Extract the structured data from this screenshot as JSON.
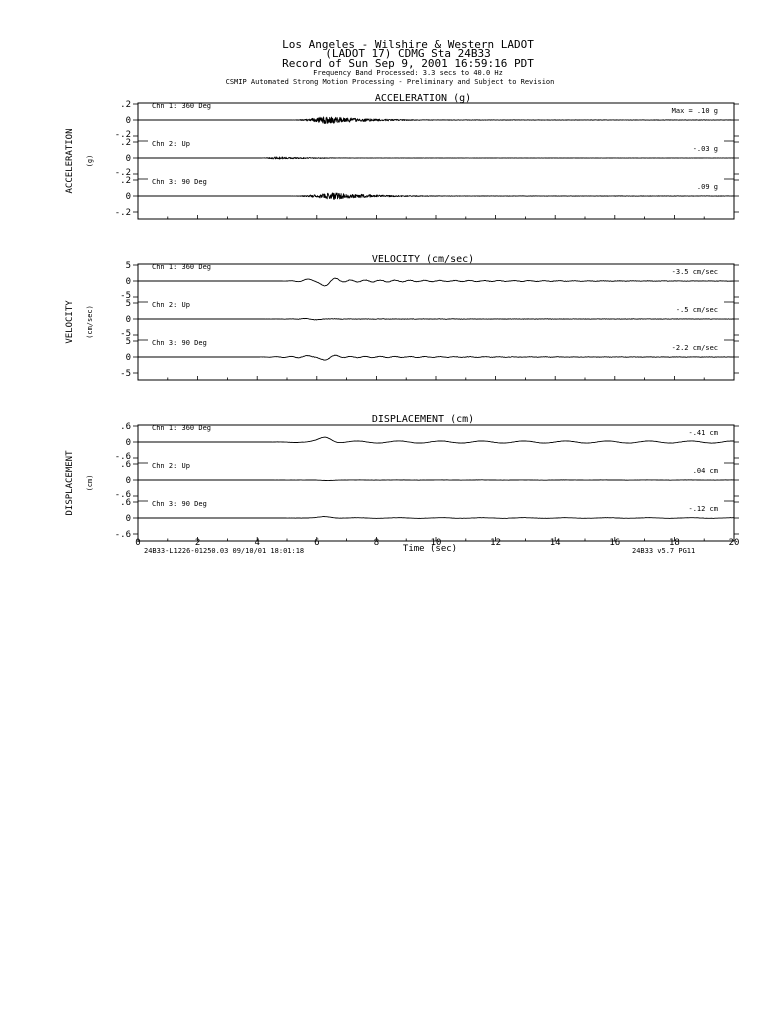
{
  "header": {
    "line1": "Los Angeles - Wilshire & Western LADOT",
    "line2": "(LADOT 17)     CDMG Sta 24B33",
    "line3": "Record of Sun Sep  9, 2001 16:59:16 PDT",
    "line4": "Frequency Band Processed: 3.3 secs to 40.0 Hz",
    "line5": "CSMIP Automated Strong Motion Processing - Preliminary and Subject to Revision"
  },
  "footer": {
    "left": "24B33-L1226-01250.03  09/10/01 18:01:18",
    "right": "24B33  v5.7  PG11"
  },
  "chart_data": {
    "type": "line",
    "xlabel": "Time (sec)",
    "xlim": [
      0,
      20
    ],
    "xticks": [
      "0",
      "2",
      "4",
      "6",
      "8",
      "10",
      "12",
      "14",
      "16",
      "18",
      "20"
    ],
    "panels": [
      {
        "title": "ACCELERATION (g)",
        "ylabel": "ACCELERATION",
        "yunit": "(g)",
        "channels": [
          {
            "name": "Chn 1: 360 Deg",
            "ytick_labels": [
              ".2",
              "0",
              "-.2"
            ],
            "max_label": "Max =   .10   g",
            "max": 0.1,
            "t_start": 5.0,
            "t_peak": 6.3,
            "shape": "accel"
          },
          {
            "name": "Chn 2: Up",
            "ytick_labels": [
              ".2",
              "0",
              "-.2"
            ],
            "max_label": "-.03   g",
            "max": -0.03,
            "t_start": 4.0,
            "t_peak": 4.6,
            "shape": "accel"
          },
          {
            "name": "Chn 3: 90 Deg",
            "ytick_labels": [
              ".2",
              "0",
              "-.2"
            ],
            "max_label": ".09   g",
            "max": 0.09,
            "t_start": 5.0,
            "t_peak": 6.5,
            "shape": "accel"
          }
        ]
      },
      {
        "title": "VELOCITY (cm/sec)",
        "ylabel": "VELOCITY",
        "yunit": "(cm/sec)",
        "channels": [
          {
            "name": "Chn 1: 360 Deg",
            "ytick_labels": [
              "5",
              "0",
              "-5"
            ],
            "max_label": "-3.5  cm/sec",
            "max": -3.5,
            "t_start": 4.8,
            "t_peak": 6.2,
            "shape": "vel"
          },
          {
            "name": "Chn 2: Up",
            "ytick_labels": [
              "5",
              "0",
              "-5"
            ],
            "max_label": "-.5   cm/sec",
            "max": -0.5,
            "t_start": 4.0,
            "t_peak": 6.0,
            "shape": "vel"
          },
          {
            "name": "Chn 3: 90 Deg",
            "ytick_labels": [
              "5",
              "0",
              "-5"
            ],
            "max_label": "-2.2  cm/sec",
            "max": -2.2,
            "t_start": 4.0,
            "t_peak": 6.2,
            "shape": "vel"
          }
        ]
      },
      {
        "title": "DISPLACEMENT (cm)",
        "ylabel": "DISPLACEMENT",
        "yunit": "(cm)",
        "channels": [
          {
            "name": "Chn 1: 360 Deg",
            "ytick_labels": [
              ".6",
              "0",
              "-.6"
            ],
            "max_label": "-.41   cm",
            "max": -0.41,
            "t_start": 4.5,
            "t_peak": 6.3,
            "shape": "disp"
          },
          {
            "name": "Chn 2: Up",
            "ytick_labels": [
              ".6",
              "0",
              "-.6"
            ],
            "max_label": ".04   cm",
            "max": 0.04,
            "t_start": 4.5,
            "t_peak": 6.3,
            "shape": "disp"
          },
          {
            "name": "Chn 3: 90 Deg",
            "ytick_labels": [
              ".6",
              "0",
              "-.6"
            ],
            "max_label": "-.12   cm",
            "max": -0.12,
            "t_start": 5.0,
            "t_peak": 6.3,
            "shape": "disp"
          }
        ]
      }
    ]
  }
}
